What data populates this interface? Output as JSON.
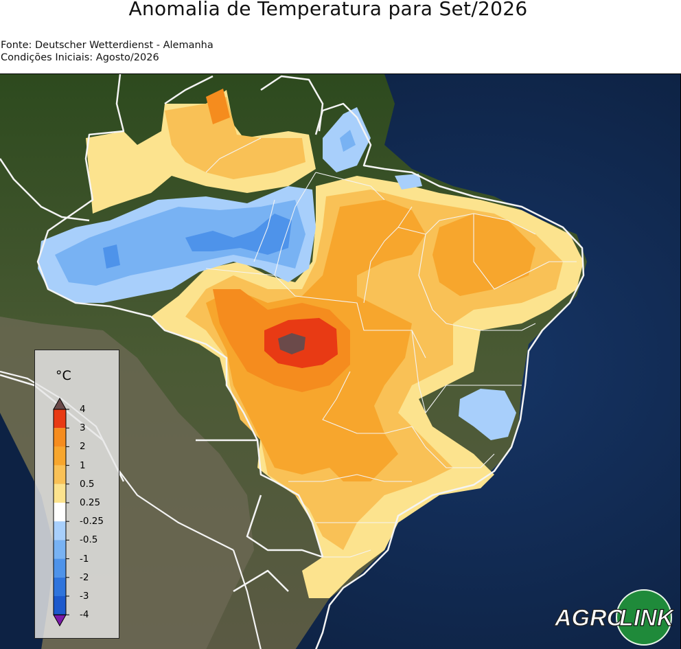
{
  "title": "Anomalia de Temperatura para Set/2026",
  "source": {
    "line1": "Fonte: Deutscher Wetterdienst - Alemanha",
    "line2": "Condições Iniciais: Agosto/2026"
  },
  "legend": {
    "unit": "°C",
    "labels": [
      "4",
      "3",
      "2",
      "1",
      "0.5",
      "0.25",
      "-0.25",
      "-0.5",
      "-1",
      "-2",
      "-3",
      "-4"
    ],
    "colors": [
      "#e83a14",
      "#f58c1e",
      "#f7a62d",
      "#f9c156",
      "#fce38e",
      "#ffffff",
      "#a8cffb",
      "#78b2f3",
      "#4e93ea",
      "#2f74dc",
      "#1c59cc"
    ],
    "top_color": "#6b4a4a",
    "bottom_color": "#7a1aa8"
  },
  "logo": {
    "left": "AGRO",
    "right": "LINK"
  },
  "colors": {
    "ocean": "#0f2547",
    "land": "#3b4a2c",
    "border": "#f4f4f4"
  }
}
